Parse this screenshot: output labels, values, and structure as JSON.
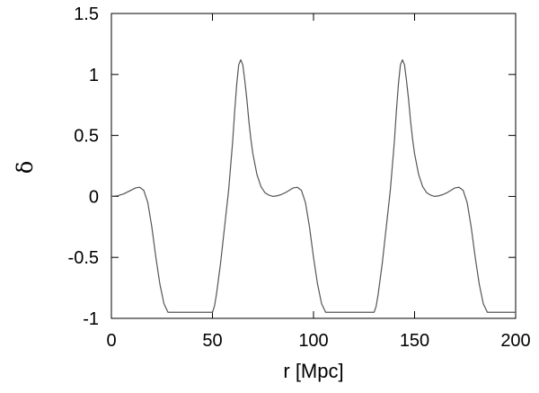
{
  "chart_data": {
    "type": "line",
    "title": "",
    "xlabel": "r [Mpc]",
    "ylabel": "δ",
    "xlim": [
      0,
      200
    ],
    "ylim": [
      -1,
      1.5
    ],
    "x_ticks": [
      0,
      50,
      100,
      150,
      200
    ],
    "y_ticks": [
      -1,
      -0.5,
      0,
      0.5,
      1,
      1.5
    ],
    "x_tick_labels": [
      "0",
      "50",
      "100",
      "150",
      "200"
    ],
    "y_tick_labels": [
      "-1",
      "-0.5",
      "0",
      "0.5",
      "1",
      "1.5"
    ],
    "grid": false,
    "legend": "none",
    "line_color": "#555555",
    "series": [
      {
        "x": [
          0,
          3,
          6,
          9,
          12,
          14,
          16,
          18,
          20,
          22,
          24,
          26,
          28,
          30,
          35,
          40,
          45,
          50,
          51,
          52,
          54,
          56,
          58,
          60,
          61,
          62,
          63,
          64,
          65,
          66,
          67,
          68,
          69,
          70,
          72,
          74,
          76,
          78,
          80,
          82,
          84,
          86,
          88,
          90,
          92,
          94,
          96,
          98,
          100,
          102,
          104,
          106,
          108,
          110,
          115,
          120,
          125,
          130,
          131,
          132,
          134,
          136,
          138,
          140,
          141,
          142,
          143,
          144,
          145,
          146,
          147,
          148,
          149,
          150,
          152,
          154,
          156,
          158,
          160,
          162,
          164,
          166,
          168,
          170,
          172,
          174,
          176,
          178,
          180,
          182,
          184,
          186,
          188,
          190,
          195,
          200
        ],
        "y": [
          0.0,
          0.005,
          0.02,
          0.045,
          0.07,
          0.075,
          0.05,
          -0.05,
          -0.25,
          -0.5,
          -0.72,
          -0.88,
          -0.95,
          -0.95,
          -0.95,
          -0.95,
          -0.95,
          -0.95,
          -0.9,
          -0.8,
          -0.55,
          -0.25,
          0.05,
          0.45,
          0.7,
          0.92,
          1.08,
          1.12,
          1.08,
          0.95,
          0.8,
          0.62,
          0.47,
          0.35,
          0.18,
          0.08,
          0.03,
          0.01,
          0.0,
          0.005,
          0.015,
          0.03,
          0.05,
          0.07,
          0.075,
          0.05,
          -0.05,
          -0.25,
          -0.5,
          -0.72,
          -0.88,
          -0.95,
          -0.95,
          -0.95,
          -0.95,
          -0.95,
          -0.95,
          -0.95,
          -0.9,
          -0.8,
          -0.55,
          -0.25,
          0.05,
          0.45,
          0.7,
          0.92,
          1.08,
          1.12,
          1.08,
          0.95,
          0.8,
          0.62,
          0.47,
          0.35,
          0.18,
          0.08,
          0.03,
          0.01,
          0.0,
          0.005,
          0.015,
          0.03,
          0.05,
          0.07,
          0.075,
          0.05,
          -0.05,
          -0.25,
          -0.5,
          -0.72,
          -0.88,
          -0.95,
          -0.95,
          -0.95,
          -0.95,
          -0.95
        ]
      }
    ]
  }
}
